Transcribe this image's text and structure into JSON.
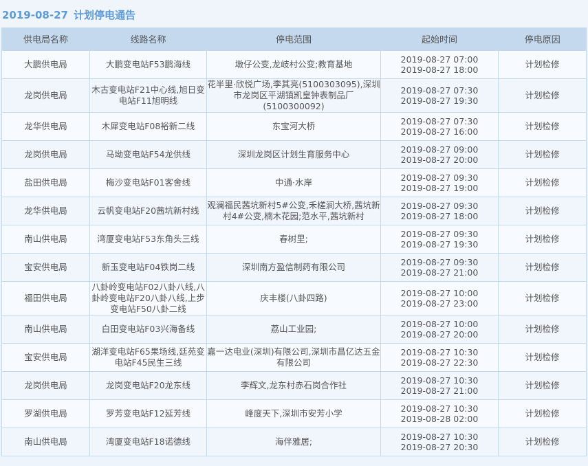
{
  "title": {
    "date": "2019-08-27",
    "text": "计划停电通告"
  },
  "columns": [
    "供电局名称",
    "线路名称",
    "停电范围",
    "起始时间",
    "停电原因"
  ],
  "rows": [
    {
      "bureau": "大鹏供电局",
      "line": "大鹏变电站F53鹏海线",
      "scope": "墩仔公变,龙岐村公变;教育基地",
      "start": "2019-08-27 07:00",
      "end": "2019-08-27 18:00",
      "reason": "计划检修"
    },
    {
      "bureau": "龙岗供电局",
      "line": "木古变电站F21中心线,旭日变电站F11旭明线",
      "scope": "花半里·欣悦广场,李其亮(5100303095),深圳市龙岗区平湖镇凯皇钟表制品厂(5100300092)",
      "start": "2019-08-27 07:30",
      "end": "2019-08-27 19:30",
      "reason": "计划检修"
    },
    {
      "bureau": "龙华供电局",
      "line": "木犀变电站F08裕新二线",
      "scope": "东宝河大桥",
      "start": "2019-08-27 07:30",
      "end": "2019-08-27 16:00",
      "reason": "计划检修"
    },
    {
      "bureau": "龙岗供电局",
      "line": "马坳变电站F54龙供线",
      "scope": "深圳龙岗区计划生育服务中心",
      "start": "2019-08-27 09:00",
      "end": "2019-08-27 20:00",
      "reason": "计划检修"
    },
    {
      "bureau": "盐田供电局",
      "line": "梅沙变电站F01客舍线",
      "scope": "中通·水岸",
      "start": "2019-08-27 09:30",
      "end": "2019-08-27 19:00",
      "reason": "计划检修"
    },
    {
      "bureau": "龙华供电局",
      "line": "云帆变电站F20茜坑新村线",
      "scope": "观澜福民茜坑新村5#公变,禾槎涧大桥,茜坑新村4#公变,楠木花园;范水平,茜坑新村",
      "start": "2019-08-27 09:30",
      "end": "2019-08-27 18:00",
      "reason": "计划检修"
    },
    {
      "bureau": "南山供电局",
      "line": "湾厦变电站F53东角头三线",
      "scope": "春树里;",
      "start": "2019-08-27 09:30",
      "end": "2019-08-27 19:30",
      "reason": "计划检修"
    },
    {
      "bureau": "宝安供电局",
      "line": "新玉变电站F04铁岗二线",
      "scope": "深圳南方盈信制药有限公司",
      "start": "2019-08-27 09:30",
      "end": "2019-08-27 21:00",
      "reason": "计划检修"
    },
    {
      "bureau": "福田供电局",
      "line": "八卦岭变电站F02八卦八线,八卦岭变电站F20八卦八线,上步变电站F50八卦二线",
      "scope": "庆丰楼(八卦四路)",
      "start": "2019-08-27 10:00",
      "end": "2019-08-27 23:00",
      "reason": "计划检修"
    },
    {
      "bureau": "南山供电局",
      "line": "白田变电站F03兴海备线",
      "scope": "荔山工业园;",
      "start": "2019-08-27 10:00",
      "end": "2019-08-27 20:00",
      "reason": "计划检修"
    },
    {
      "bureau": "宝安供电局",
      "line": "湖洋变电站F65果场线,廷苑变电站F45民生三线",
      "scope": "嘉一达电业(深圳)有限公司,深圳市昌亿达五金有限公司",
      "start": "2019-08-27 10:30",
      "end": "2019-08-27 22:30",
      "reason": "计划检修"
    },
    {
      "bureau": "龙岗供电局",
      "line": "龙岗变电站F20龙东线",
      "scope": "李辉文,龙东村赤石岗合作社",
      "start": "2019-08-27 10:30",
      "end": "2019-08-27 21:00",
      "reason": "计划检修"
    },
    {
      "bureau": "罗湖供电局",
      "line": "罗芳变电站F12延芳线",
      "scope": "峰度天下,深圳市安芳小学",
      "start": "2019-08-27 10:30",
      "end": "2019-08-28 02:00",
      "reason": "计划检修"
    },
    {
      "bureau": "南山供电局",
      "line": "湾厦变电站F18诺德线",
      "scope": "海伴雅居;",
      "start": "2019-08-27 10:30",
      "end": "2019-08-27 20:30",
      "reason": "计划检修"
    }
  ]
}
